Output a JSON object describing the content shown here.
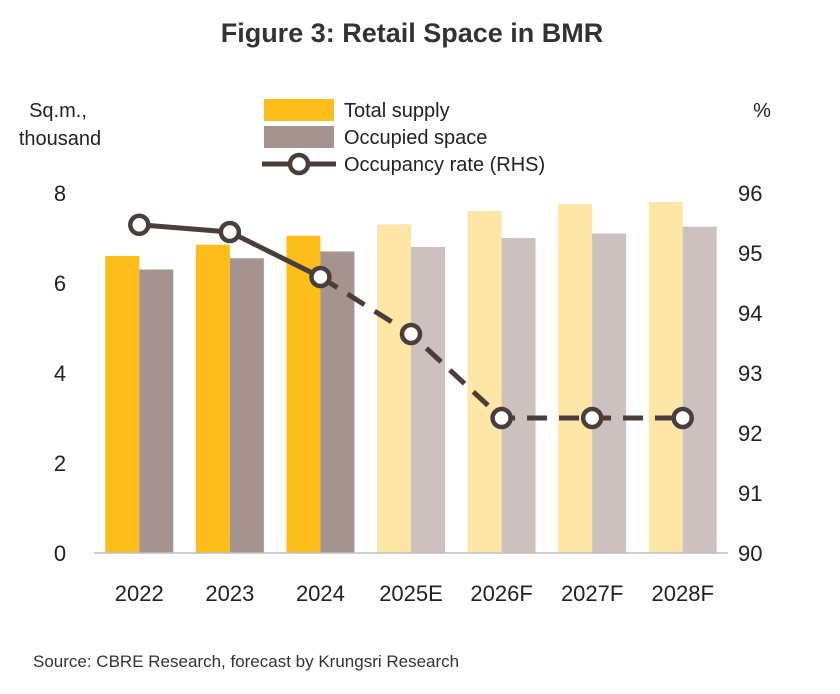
{
  "chart_data": {
    "type": "bar",
    "title": "Figure 3: Retail Space in BMR",
    "ylabel_left": [
      "Sq.m.,",
      "thousand"
    ],
    "ylabel_right": "%",
    "categories": [
      "2022",
      "2023",
      "2024",
      "2025E",
      "2026F",
      "2027F",
      "2028F"
    ],
    "forecast_from_index": 3,
    "series": [
      {
        "name": "Total supply",
        "kind": "bar",
        "axis": "left",
        "values": [
          6.6,
          6.85,
          7.05,
          7.3,
          7.6,
          7.75,
          7.8
        ],
        "color": "#FDBE1C",
        "forecast_color": "#FDE6A6"
      },
      {
        "name": "Occupied space",
        "kind": "bar",
        "axis": "left",
        "values": [
          6.3,
          6.55,
          6.7,
          6.8,
          7.0,
          7.1,
          7.25
        ],
        "color": "#A59390",
        "forecast_color": "#CCC1BF"
      },
      {
        "name": "Occupancy rate (RHS)",
        "kind": "line",
        "axis": "right",
        "values": [
          95.47,
          95.35,
          94.6,
          93.65,
          92.25,
          92.25,
          92.25
        ],
        "color": "#4A3E3D",
        "dashed_from_index": 2
      }
    ],
    "ylim_left": [
      0,
      8
    ],
    "yticks_left": [
      0,
      2,
      4,
      6,
      8
    ],
    "ylim_right": [
      90,
      96
    ],
    "yticks_right": [
      90,
      91,
      92,
      93,
      94,
      95,
      96
    ],
    "legend": "top-center",
    "grid": false
  },
  "source": "Source: CBRE Research, forecast by Krungsri Research"
}
